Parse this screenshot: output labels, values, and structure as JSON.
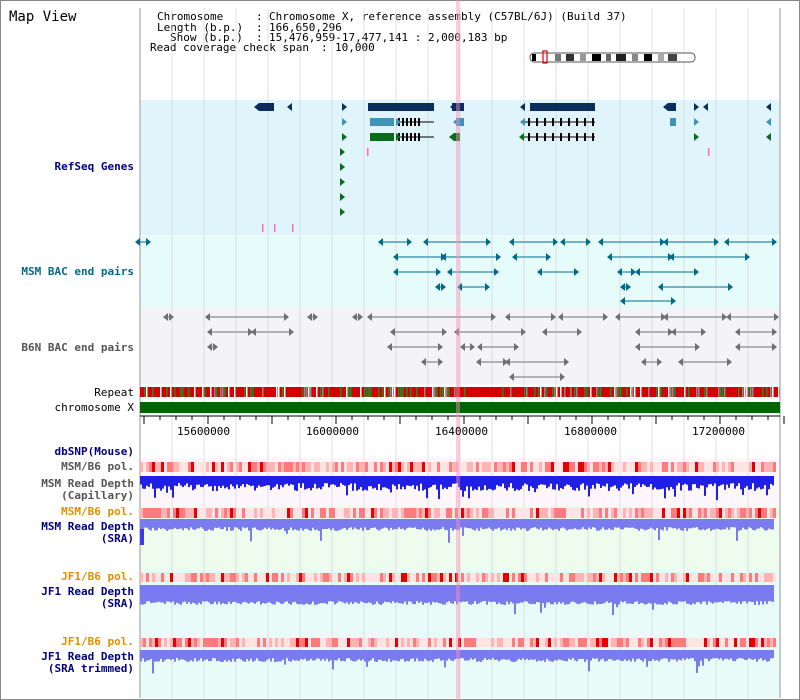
{
  "panel_title": "Map View",
  "info": {
    "chromosome_key": "Chromosome",
    "chromosome_value": "Chromosome X, reference assembly (C57BL/6J) (Build 37)",
    "length_key": "Length (b.p.)",
    "length_value": "166,650,296",
    "show_key": "Show (b.p.)",
    "show_value": "15,476,959-17,477,141 : 2,000,183 bp",
    "coverage_key": "Read coverage check span",
    "coverage_value": "10,000"
  },
  "tracks": {
    "refseq": "RefSeq Genes",
    "msm_bac": "MSM BAC end pairs",
    "b6n_bac": "B6N BAC end pairs",
    "repeat": "Repeat",
    "chromosome": "chromosome X",
    "dbsnp": "dbSNP(Mouse)",
    "msm_b6_pol_1": "MSM/B6 pol.",
    "msm_depth_cap_1": "MSM Read Depth",
    "msm_depth_cap_2": "(Capillary)",
    "msm_b6_pol_2": "MSM/B6 pol.",
    "msm_depth_sra_1": "MSM Read Depth",
    "msm_depth_sra_2": "(SRA)",
    "jf1_b6_pol_1": "JF1/B6 pol.",
    "jf1_depth_sra_1": "JF1 Read Depth",
    "jf1_depth_sra_2": "(SRA)",
    "jf1_b6_pol_2": "JF1/B6 pol.",
    "jf1_depth_trim_1": "JF1 Read Depth",
    "jf1_depth_trim_2": "(SRA trimmed)"
  },
  "axis_ticks": [
    "15600000",
    "16000000",
    "16400000",
    "16800000",
    "17200000"
  ],
  "colors": {
    "refseq_bg": "#dff5fb",
    "gene_navy": "#0b2d5e",
    "gene_teal": "#3f93b8",
    "gene_green": "#0a6b1a",
    "msm_bac": "#006a8a",
    "b6n_bac": "#707070",
    "chromosome": "#006400",
    "depth_blue": "#1f1fe6",
    "depth_light": "#7b7bf0"
  }
}
